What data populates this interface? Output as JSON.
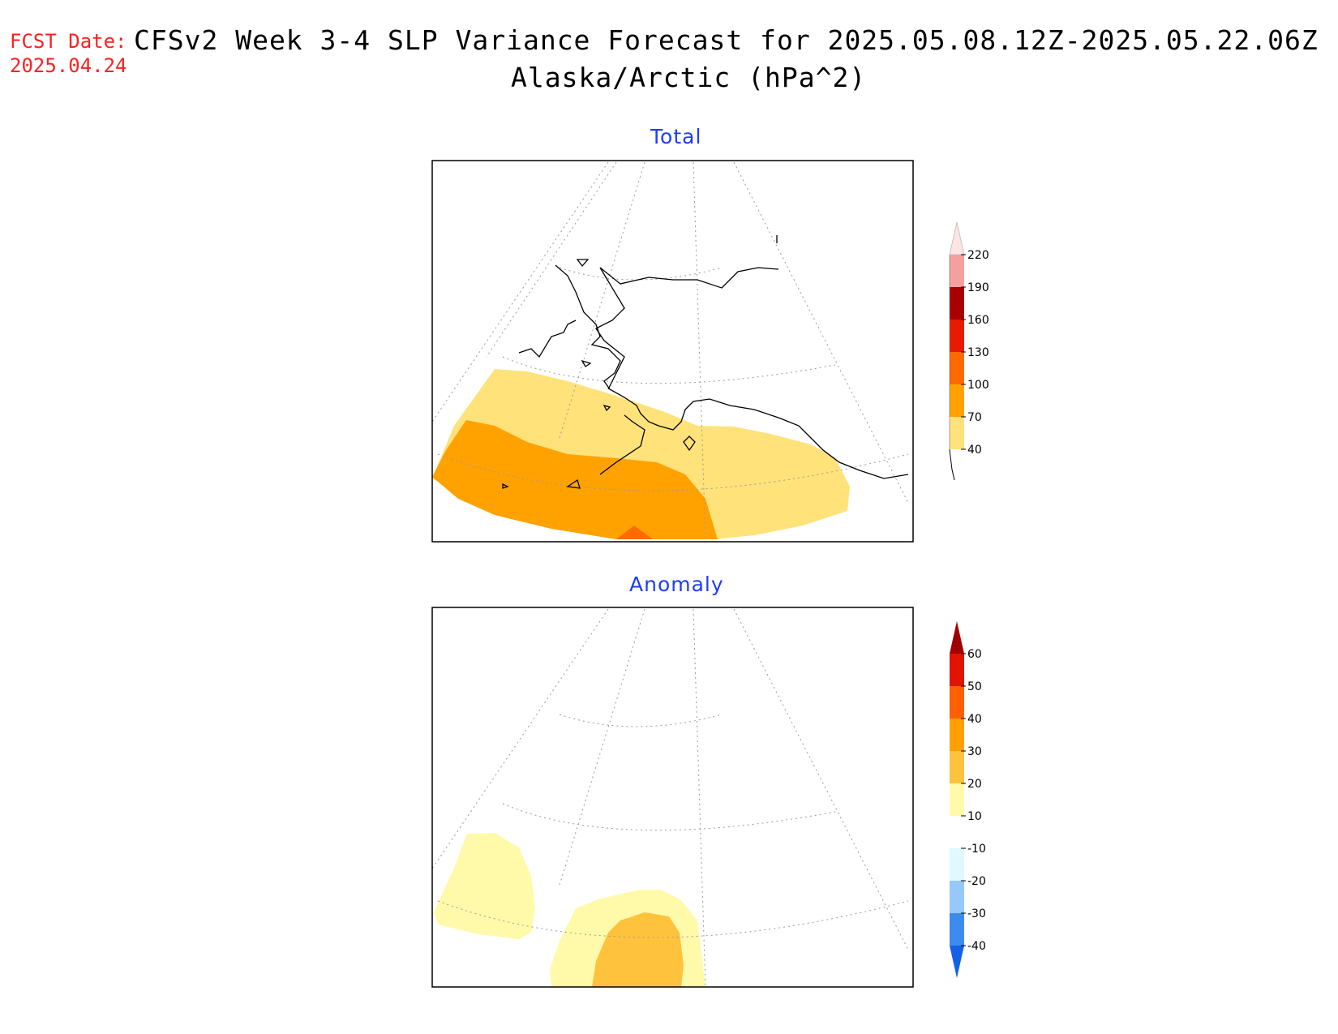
{
  "header": {
    "fcst_label": "FCST Date:",
    "fcst_date": "2025.04.24",
    "title_line1": "CFSv2 Week 3-4 SLP Variance Forecast for 2025.05.08.12Z-2025.05.22.06Z",
    "title_line2": "Alaska/Arctic (hPa^2)"
  },
  "panels": [
    {
      "title": "Total",
      "colorbar": {
        "levels": [
          "40",
          "70",
          "100",
          "130",
          "160",
          "190",
          "220"
        ],
        "colors": [
          "#ffe27a",
          "#ffa200",
          "#ff6a00",
          "#e81a00",
          "#a80000",
          "#f4a0a0",
          "#ffe4e4"
        ]
      }
    },
    {
      "title": "Anomaly",
      "colorbar": {
        "levels": [
          "-40",
          "-30",
          "-20",
          "-10",
          "10",
          "20",
          "30",
          "40",
          "50",
          "60"
        ],
        "colors": [
          "#1460e6",
          "#3c8cf0",
          "#96c8fa",
          "#e0f8ff",
          "#ffffff",
          "#fffaaa",
          "#ffc23c",
          "#ffa000",
          "#ff6000",
          "#e01400",
          "#a00000"
        ]
      }
    }
  ]
}
